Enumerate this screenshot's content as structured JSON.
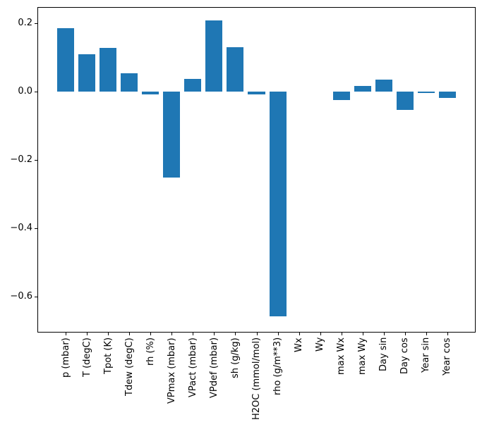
{
  "figure": {
    "background": "#ffffff"
  },
  "chart_data": {
    "type": "bar",
    "title": "",
    "xlabel": "",
    "ylabel": "",
    "categories": [
      "p (mbar)",
      "T (degC)",
      "Tpot (K)",
      "Tdew (degC)",
      "rh (%)",
      "VPmax (mbar)",
      "VPact (mbar)",
      "VPdef (mbar)",
      "sh (g/kg)",
      "H2OC (mmol/mol)",
      "rho (g/m**3)",
      "Wx",
      "Wy",
      "max Wx",
      "max Wy",
      "Day sin",
      "Day cos",
      "Year sin",
      "Year cos"
    ],
    "values": [
      0.186,
      0.108,
      0.127,
      0.053,
      -0.009,
      -0.251,
      0.036,
      0.207,
      0.129,
      -0.008,
      -0.658,
      0.0,
      0.0,
      -0.026,
      0.016,
      0.035,
      -0.053,
      -0.004,
      -0.019
    ],
    "bar_color": "#1f77b4",
    "axis_color": "#000000",
    "ylim": [
      -0.705,
      0.247
    ],
    "yticks": [
      0.2,
      0.0,
      -0.2,
      -0.4,
      -0.6
    ],
    "ytick_labels": [
      "0.2",
      "0.0",
      "−0.2",
      "−0.4",
      "−0.6"
    ],
    "xtick_rotation": 90,
    "grid": false,
    "legend": null
  }
}
